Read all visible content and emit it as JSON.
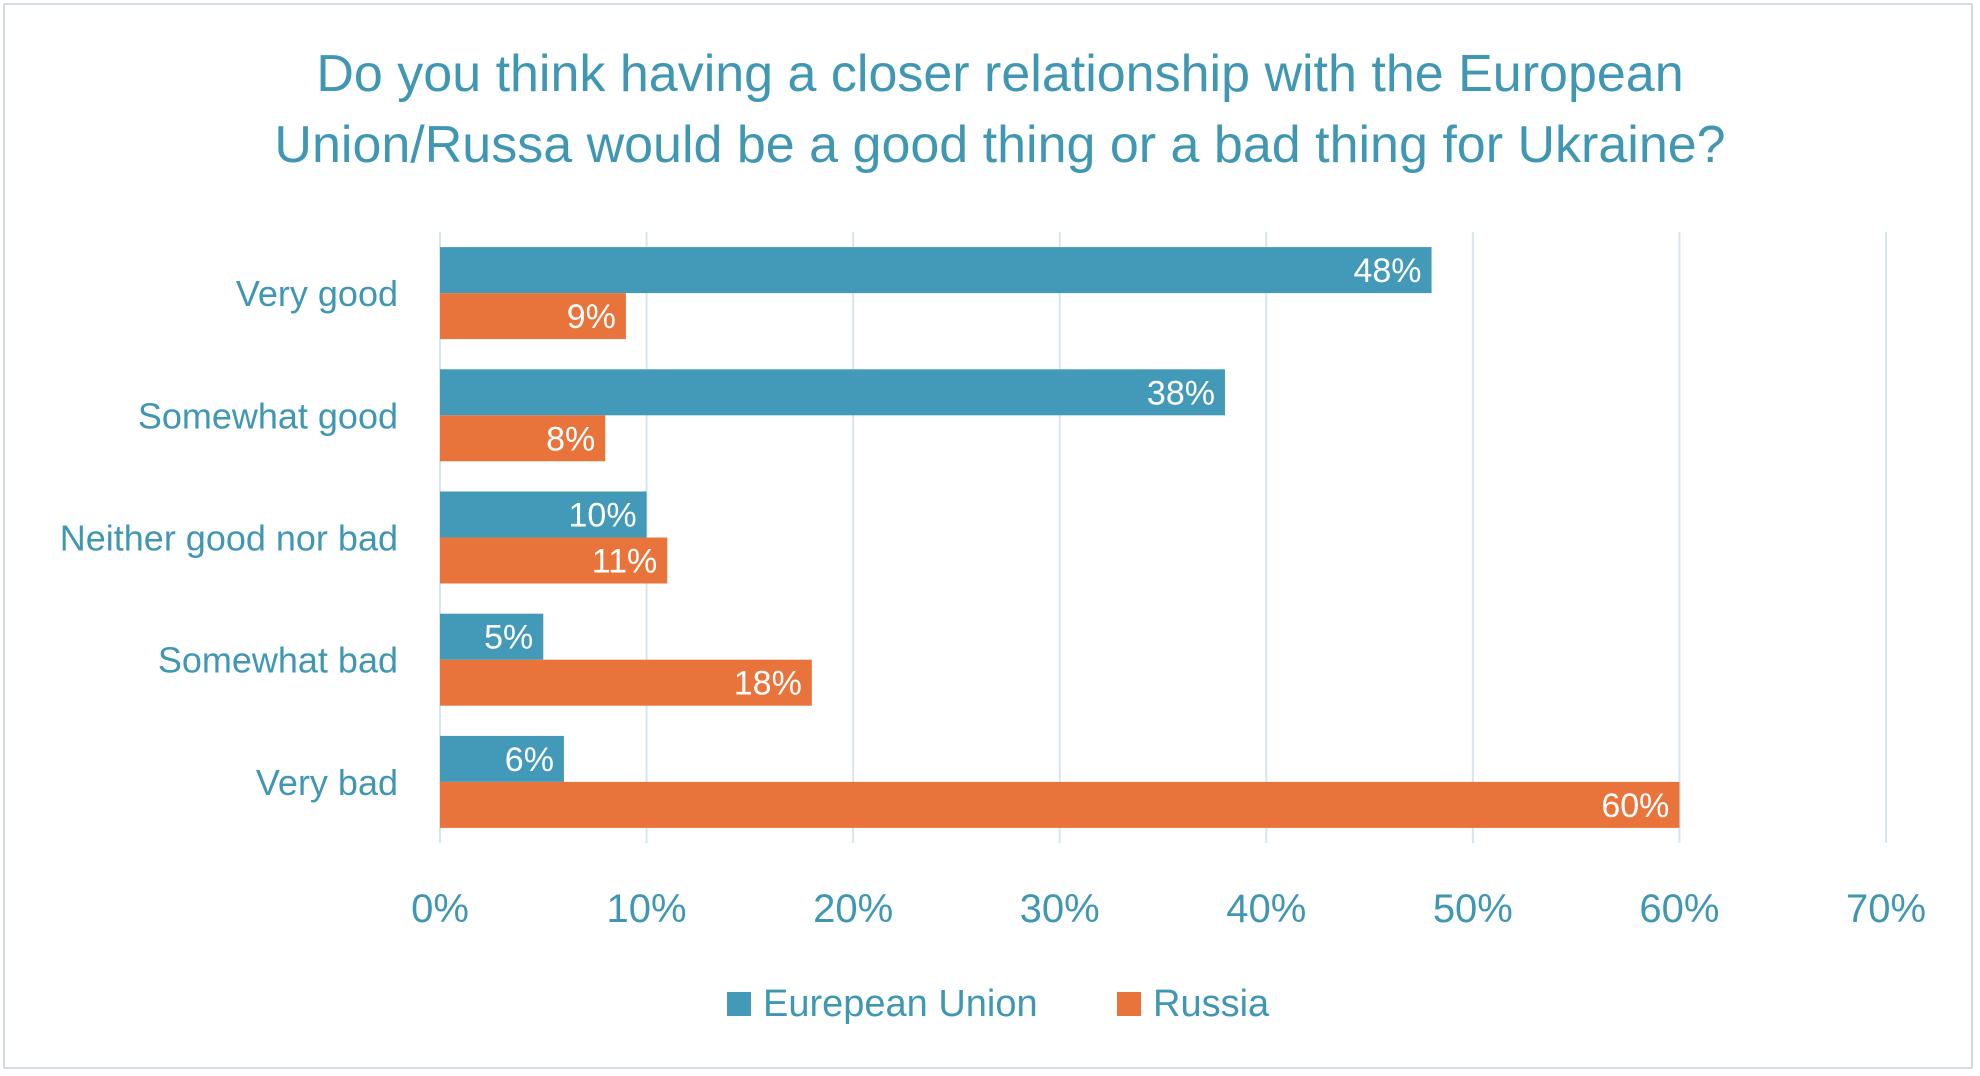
{
  "chart_data": {
    "type": "bar",
    "orientation": "horizontal",
    "title_lines": [
      "Do you think having a closer relationship with the European",
      "Union/Russa would be a good thing or a bad thing for Ukraine?"
    ],
    "categories": [
      "Very good",
      "Somewhat good",
      "Neither good nor bad",
      "Somewhat bad",
      "Very bad"
    ],
    "series": [
      {
        "name": "Eurepean Union",
        "color": "#4299b8",
        "values": [
          48,
          38,
          10,
          5,
          6
        ]
      },
      {
        "name": "Russia",
        "color": "#e8743b",
        "values": [
          9,
          8,
          11,
          18,
          60
        ]
      }
    ],
    "value_suffix": "%",
    "xlim": [
      0,
      70
    ],
    "x_ticks": [
      0,
      10,
      20,
      30,
      40,
      50,
      60,
      70
    ],
    "x_tick_labels": [
      "0%",
      "10%",
      "20%",
      "30%",
      "40%",
      "50%",
      "60%",
      "70%"
    ],
    "grid": "vertical",
    "grid_color": "#d7e6ec",
    "legend_position": "bottom",
    "xlabel": "",
    "ylabel": ""
  }
}
